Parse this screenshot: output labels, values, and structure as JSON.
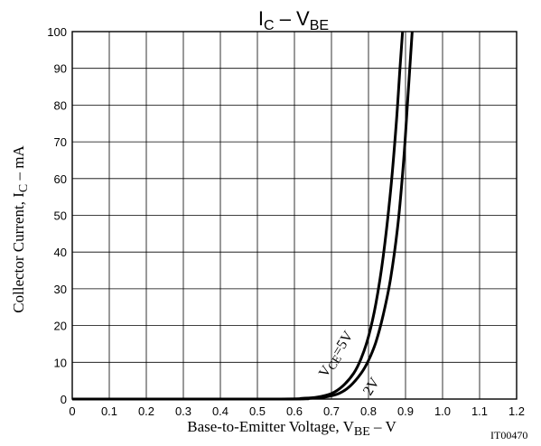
{
  "chart_data": {
    "type": "line",
    "title_main": "I",
    "title_sub": "C",
    "title_mid": " – V",
    "title_sub2": "BE",
    "xlabel_main": "Base-to-Emitter Voltage, V",
    "xlabel_sub": "BE",
    "xlabel_tail": "  –  V",
    "ylabel_main": "Collector Current, I",
    "ylabel_sub": "C",
    "ylabel_tail": "  –  mA",
    "figure_code": "IT00470",
    "xlim": [
      0,
      1.2
    ],
    "ylim": [
      0,
      100
    ],
    "x_ticks": [
      "0",
      "0.1",
      "0.2",
      "0.3",
      "0.4",
      "0.5",
      "0.6",
      "0.7",
      "0.8",
      "0.9",
      "1.0",
      "1.1",
      "1.2"
    ],
    "y_ticks": [
      "0",
      "10",
      "20",
      "30",
      "40",
      "50",
      "60",
      "70",
      "80",
      "90",
      "100"
    ],
    "grid": true,
    "series": [
      {
        "label_main": "V",
        "label_sub": "CE",
        "label_tail": "=5V",
        "x": [
          0,
          0.55,
          0.62,
          0.66,
          0.7,
          0.73,
          0.76,
          0.78,
          0.8,
          0.82,
          0.84,
          0.86,
          0.875,
          0.885,
          0.892
        ],
        "y": [
          0,
          0,
          0.2,
          0.5,
          1.5,
          3.5,
          7,
          11,
          17,
          26,
          39,
          57,
          75,
          90,
          100
        ]
      },
      {
        "label_main": "2V",
        "x": [
          0,
          0.57,
          0.64,
          0.68,
          0.72,
          0.75,
          0.78,
          0.8,
          0.82,
          0.84,
          0.86,
          0.88,
          0.895,
          0.905,
          0.918
        ],
        "y": [
          0,
          0,
          0.2,
          0.5,
          1.5,
          3.5,
          7,
          10.5,
          15.5,
          23,
          33,
          48,
          65,
          80,
          100
        ]
      }
    ]
  }
}
